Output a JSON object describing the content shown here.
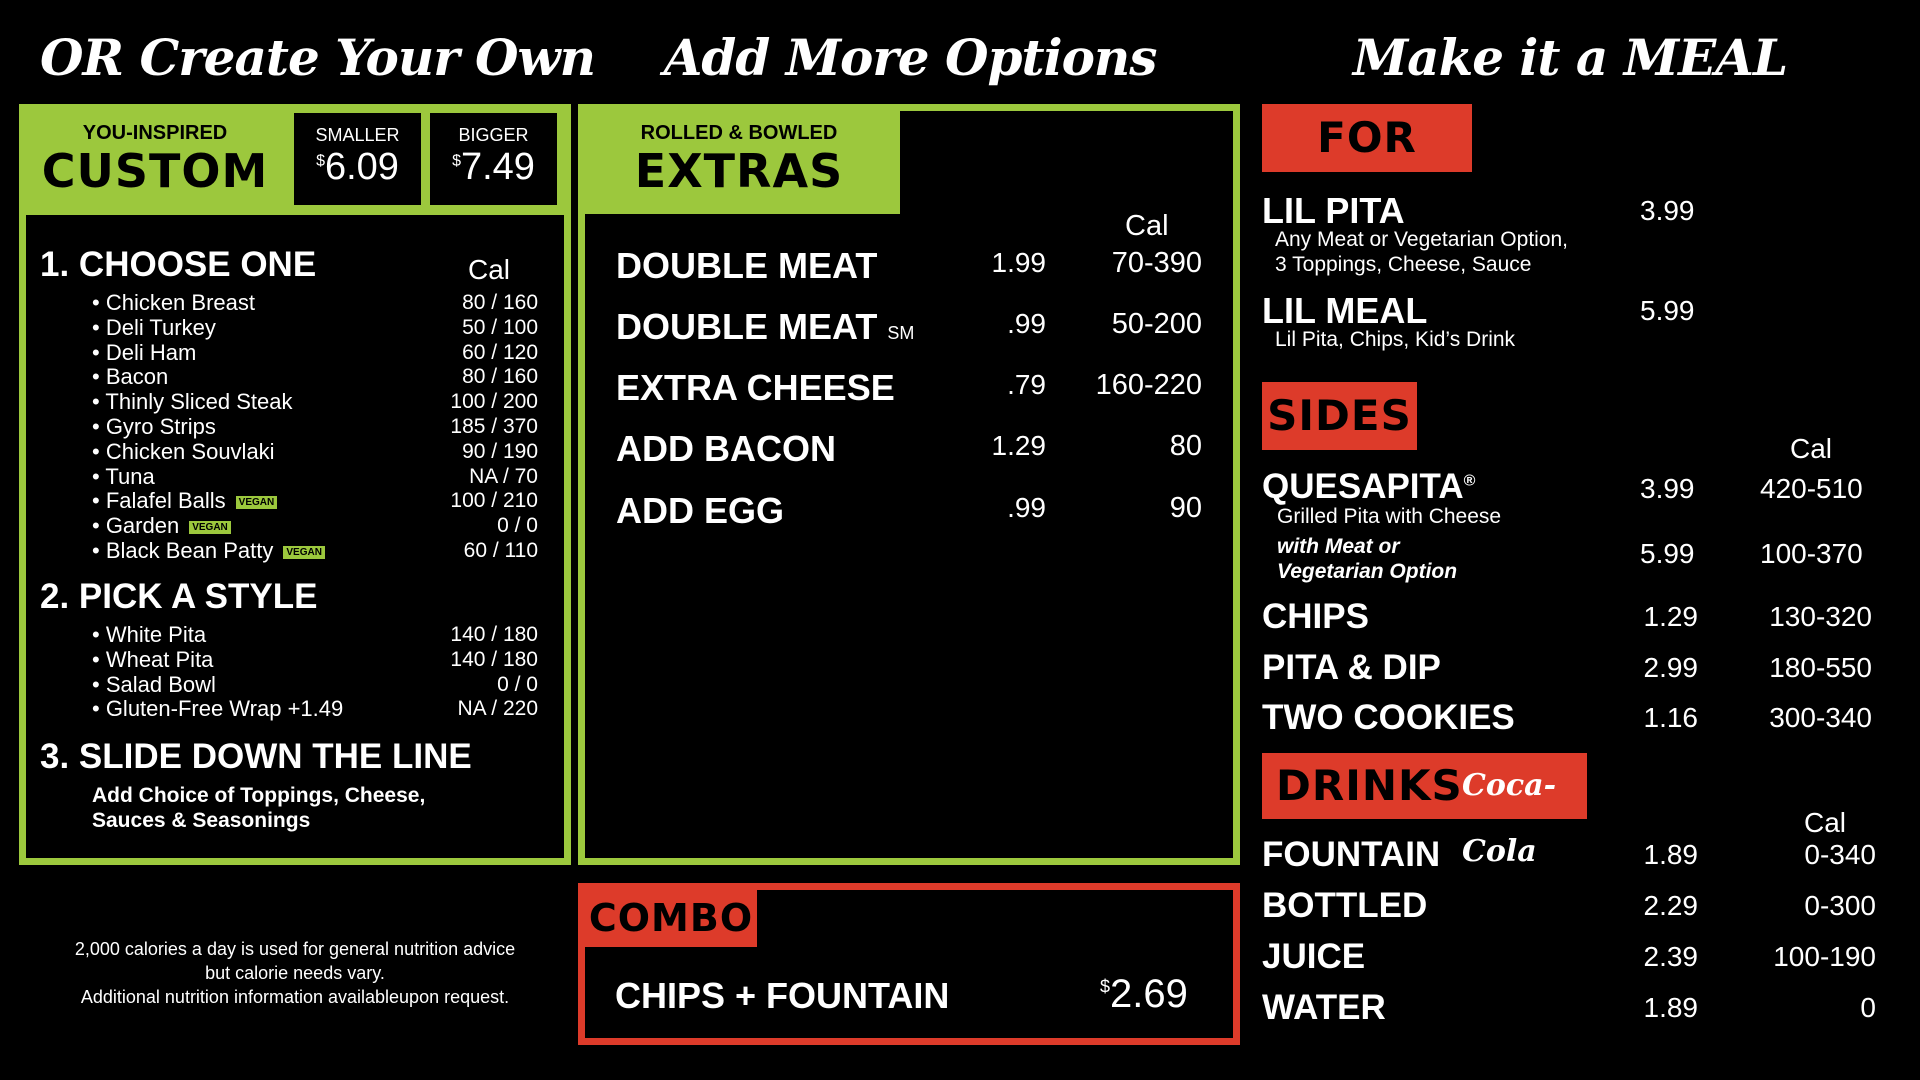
{
  "titles": {
    "create_own": "OR Create Your Own",
    "add_options": "Add More Options",
    "make_meal": "Make it a MEAL"
  },
  "custom": {
    "kicker": "YOU-INSPIRED",
    "label": "CUSTOM",
    "smaller_label": "SMALLER",
    "smaller_cur": "$",
    "smaller_price": "6.09",
    "bigger_label": "BIGGER",
    "bigger_cur": "$",
    "bigger_price": "7.49",
    "step1": "1. CHOOSE ONE",
    "cal_header": "Cal",
    "proteins": [
      {
        "name": "• Chicken Breast",
        "cal": "80 / 160",
        "vegan": false
      },
      {
        "name": "• Deli Turkey",
        "cal": "50 / 100",
        "vegan": false
      },
      {
        "name": "• Deli Ham",
        "cal": "60 / 120",
        "vegan": false
      },
      {
        "name": "• Bacon",
        "cal": "80 / 160",
        "vegan": false
      },
      {
        "name": "• Thinly Sliced Steak",
        "cal": "100 / 200",
        "vegan": false
      },
      {
        "name": "• Gyro Strips",
        "cal": "185 / 370",
        "vegan": false
      },
      {
        "name": "• Chicken Souvlaki",
        "cal": "90 / 190",
        "vegan": false
      },
      {
        "name": "• Tuna",
        "cal": "NA / 70",
        "vegan": false
      },
      {
        "name": "• Falafel Balls",
        "cal": "100 / 210",
        "vegan": true
      },
      {
        "name": "• Garden",
        "cal": "0 / 0",
        "vegan": true
      },
      {
        "name": "• Black Bean Patty",
        "cal": "60 / 110",
        "vegan": true
      }
    ],
    "vegan_tag": "VEGAN",
    "step2": "2. PICK A STYLE",
    "styles": [
      {
        "name": "• White Pita",
        "cal": "140 / 180"
      },
      {
        "name": "• Wheat Pita",
        "cal": "140 / 180"
      },
      {
        "name": "• Salad Bowl",
        "cal": "0 / 0"
      },
      {
        "name": "• Gluten-Free Wrap  +1.49",
        "cal": "NA / 220"
      }
    ],
    "step3": "3. SLIDE DOWN THE LINE",
    "step3_desc_1": "Add Choice of Toppings, Cheese,",
    "step3_desc_2": "Sauces & Seasonings"
  },
  "disclaimer": {
    "line1": "2,000 calories a day is used for general nutrition advice",
    "line2": "but calorie needs vary.",
    "line3": "Additional nutrition information availableupon request."
  },
  "extras": {
    "kicker": "ROLLED & BOWLED",
    "label": "EXTRAS",
    "cal_header": "Cal",
    "items": [
      {
        "name": "DOUBLE MEAT",
        "suffix": "",
        "price": "1.99",
        "cal": "70-390"
      },
      {
        "name": "DOUBLE MEAT",
        "suffix": "SM",
        "price": ".99",
        "cal": "50-200"
      },
      {
        "name": "EXTRA CHEESE",
        "suffix": "",
        "price": ".79",
        "cal": "160-220"
      },
      {
        "name": "ADD BACON",
        "suffix": "",
        "price": "1.29",
        "cal": "80"
      },
      {
        "name": "ADD EGG",
        "suffix": "",
        "price": ".99",
        "cal": "90"
      }
    ]
  },
  "combo": {
    "label": "COMBO",
    "item": "CHIPS + FOUNTAIN",
    "cur": "$",
    "price": "2.69"
  },
  "kids": {
    "label": "FOR KIDS",
    "items": [
      {
        "name": "LIL PITA",
        "price": "3.99",
        "desc1": "Any Meat or Vegetarian Option,",
        "desc2": "3 Toppings, Cheese, Sauce"
      },
      {
        "name": "LIL MEAL",
        "price": "5.99",
        "desc1": "Lil Pita, Chips, Kid’s Drink",
        "desc2": ""
      }
    ]
  },
  "sides": {
    "label": "SIDES",
    "cal_header": "Cal",
    "quesapita_name": "QUESAPITA",
    "quesapita_reg": "®",
    "quesapita_desc": "Grilled Pita with Cheese",
    "quesapita_price": "3.99",
    "quesapita_cal": "420-510",
    "quesapita_meat_1": "with Meat or",
    "quesapita_meat_2": "Vegetarian Option",
    "quesapita_meat_price": "5.99",
    "quesapita_meat_cal": "100-370",
    "items": [
      {
        "name": "CHIPS",
        "price": "1.29",
        "cal": "130-320"
      },
      {
        "name": "PITA & DIP",
        "price": "2.99",
        "cal": "180-550"
      },
      {
        "name": "TWO COOKIES",
        "price": "1.16",
        "cal": "300-340"
      }
    ]
  },
  "drinks": {
    "label": "DRINKS",
    "brand": "Coca-Cola",
    "cal_header": "Cal",
    "items": [
      {
        "name": "FOUNTAIN",
        "price": "1.89",
        "cal": "0-340"
      },
      {
        "name": "BOTTLED",
        "price": "2.29",
        "cal": "0-300"
      },
      {
        "name": "JUICE",
        "price": "2.39",
        "cal": "100-190"
      },
      {
        "name": "WATER",
        "price": "1.89",
        "cal": "0"
      }
    ]
  },
  "colors": {
    "green": "#9cc83d",
    "red": "#dd3b2a",
    "bg": "#000000"
  }
}
